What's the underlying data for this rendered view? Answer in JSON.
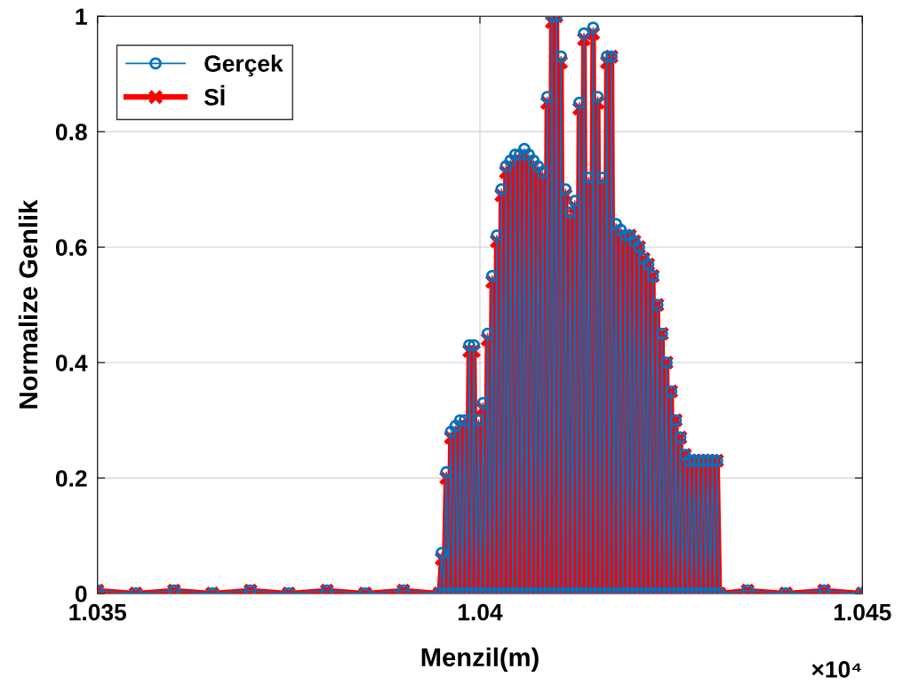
{
  "chart_data": {
    "type": "line",
    "xlabel": "Menzil(m)",
    "ylabel": "Normalize Genlik",
    "annotations": [
      "×10⁴"
    ],
    "xlim": [
      1.035,
      1.045
    ],
    "xticks": [
      1.035,
      1.04,
      1.045
    ],
    "ylim": [
      0,
      1
    ],
    "yticks": [
      0,
      0.2,
      0.4,
      0.6,
      0.8,
      1
    ],
    "grid": true,
    "legend": "top left",
    "x": [
      1.035,
      1.0355,
      1.036,
      1.0365,
      1.037,
      1.0375,
      1.038,
      1.0385,
      1.039,
      1.03947,
      1.0395,
      1.03953,
      1.03956,
      1.03959,
      1.03962,
      1.03965,
      1.03968,
      1.03971,
      1.03974,
      1.03977,
      1.0398,
      1.03983,
      1.03986,
      1.03989,
      1.03992,
      1.03995,
      1.03998,
      1.04001,
      1.04004,
      1.04007,
      1.0401,
      1.04013,
      1.04016,
      1.04019,
      1.04022,
      1.04025,
      1.04028,
      1.04031,
      1.04034,
      1.04037,
      1.0404,
      1.04043,
      1.04046,
      1.04049,
      1.04052,
      1.04055,
      1.04058,
      1.04061,
      1.04064,
      1.04067,
      1.0407,
      1.04073,
      1.04076,
      1.04079,
      1.04082,
      1.04085,
      1.04088,
      1.04091,
      1.04094,
      1.04097,
      1.041,
      1.04103,
      1.04106,
      1.04109,
      1.04112,
      1.04115,
      1.04118,
      1.04121,
      1.04124,
      1.04127,
      1.0413,
      1.04133,
      1.04136,
      1.04139,
      1.04142,
      1.04145,
      1.04148,
      1.04151,
      1.04154,
      1.04157,
      1.0416,
      1.04163,
      1.04166,
      1.04169,
      1.04172,
      1.04175,
      1.04178,
      1.04181,
      1.04184,
      1.04187,
      1.0419,
      1.04193,
      1.04196,
      1.04199,
      1.04202,
      1.04205,
      1.04208,
      1.04211,
      1.04214,
      1.04217,
      1.0422,
      1.04223,
      1.04226,
      1.04229,
      1.04232,
      1.04235,
      1.04238,
      1.04241,
      1.04244,
      1.04247,
      1.0425,
      1.04253,
      1.04256,
      1.04259,
      1.04262,
      1.04265,
      1.04268,
      1.04271,
      1.04274,
      1.04277,
      1.0428,
      1.04283,
      1.04286,
      1.04289,
      1.04292,
      1.04295,
      1.04298,
      1.04301,
      1.04304,
      1.04307,
      1.0431,
      1.04313,
      1.0435,
      1.044,
      1.0445,
      1.045
    ],
    "series": [
      {
        "name": "Gerçek",
        "color": "#0072bd",
        "marker": "circle",
        "values": [
          0.005,
          0,
          0.005,
          0,
          0.005,
          0,
          0.005,
          0,
          0.005,
          0,
          0.07,
          0,
          0.21,
          0,
          0.28,
          0,
          0.29,
          0,
          0.3,
          0,
          0.3,
          0,
          0.43,
          0,
          0.43,
          0,
          0.3,
          0,
          0.33,
          0,
          0.45,
          0,
          0.55,
          0,
          0.62,
          0,
          0.7,
          0,
          0.74,
          0,
          0.75,
          0,
          0.76,
          0,
          0.76,
          0,
          0.77,
          0,
          0.76,
          0,
          0.75,
          0,
          0.74,
          0,
          0.73,
          0,
          0.86,
          0,
          1,
          0,
          1,
          0,
          0.93,
          0,
          0.7,
          0,
          0.66,
          0,
          0.68,
          0,
          0.85,
          0,
          0.97,
          0,
          0.72,
          0,
          0.98,
          0,
          0.86,
          0,
          0.72,
          0,
          0.93,
          0,
          0.93,
          0,
          0.64,
          0,
          0.63,
          0,
          0.62,
          0,
          0.62,
          0,
          0.61,
          0,
          0.6,
          0,
          0.58,
          0,
          0.57,
          0,
          0.55,
          0,
          0.5,
          0,
          0.45,
          0,
          0.4,
          0,
          0.35,
          0,
          0.3,
          0,
          0.27,
          0,
          0.24,
          0,
          0.23,
          0,
          0.23,
          0,
          0.23,
          0,
          0.23,
          0,
          0.23,
          0,
          0.23,
          0,
          0.23,
          0,
          0.005,
          0,
          0.005,
          0
        ]
      },
      {
        "name": "Sİ",
        "color": "#ff0000",
        "marker": "cross",
        "values": [
          0.005,
          0,
          0.005,
          0,
          0.005,
          0,
          0.005,
          0,
          0.005,
          0,
          0.06,
          0,
          0.2,
          0,
          0.27,
          0,
          0.28,
          0,
          0.29,
          0,
          0.29,
          0,
          0.42,
          0,
          0.42,
          0,
          0.29,
          0,
          0.32,
          0,
          0.44,
          0,
          0.54,
          0,
          0.61,
          0,
          0.69,
          0,
          0.73,
          0,
          0.74,
          0,
          0.75,
          0,
          0.75,
          0,
          0.76,
          0,
          0.75,
          0,
          0.74,
          0,
          0.73,
          0,
          0.72,
          0,
          0.85,
          0,
          0.99,
          0,
          1,
          0,
          0.92,
          0,
          0.69,
          0,
          0.65,
          0,
          0.67,
          0,
          0.84,
          0,
          0.96,
          0,
          0.71,
          0,
          0.97,
          0,
          0.85,
          0,
          0.71,
          0,
          0.92,
          0,
          0.93,
          0,
          0.63,
          0,
          0.62,
          0,
          0.62,
          0,
          0.62,
          0,
          0.61,
          0,
          0.6,
          0,
          0.58,
          0,
          0.57,
          0,
          0.55,
          0,
          0.5,
          0,
          0.45,
          0,
          0.4,
          0,
          0.35,
          0,
          0.3,
          0,
          0.27,
          0,
          0.24,
          0,
          0.23,
          0,
          0.23,
          0,
          0.23,
          0,
          0.23,
          0,
          0.23,
          0,
          0.23,
          0,
          0.23,
          0,
          0.005,
          0,
          0.005,
          0
        ]
      }
    ]
  }
}
